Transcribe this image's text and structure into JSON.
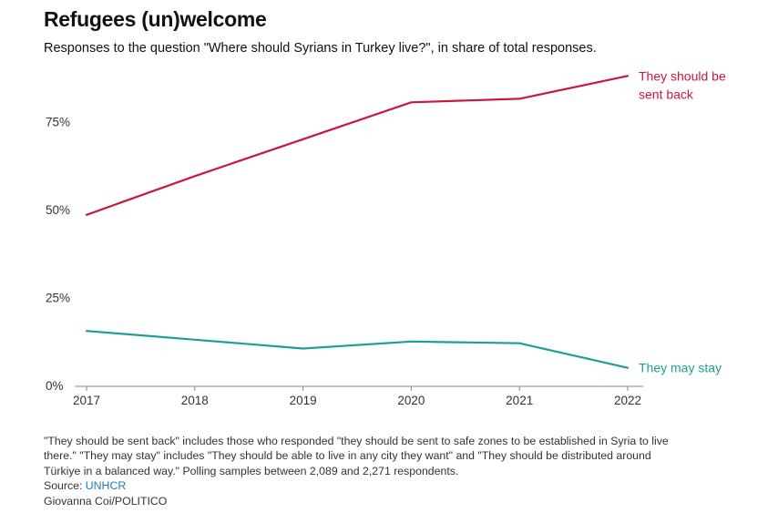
{
  "header": {
    "title": "Refugees (un)welcome",
    "subtitle": "Responses to the question \"Where should Syrians in Turkey live?\", in share of total responses."
  },
  "chart_data": {
    "type": "line",
    "title": "Refugees (un)welcome",
    "subtitle": "Responses to the question \"Where should Syrians in Turkey live?\", in share of total responses.",
    "x": [
      "2017",
      "2018",
      "2019",
      "2020",
      "2021",
      "2022"
    ],
    "y_ticks": [
      {
        "value": 0,
        "label": "0%"
      },
      {
        "value": 25,
        "label": "25%"
      },
      {
        "value": 50,
        "label": "50%"
      },
      {
        "value": 75,
        "label": "75%"
      }
    ],
    "ylim": [
      0,
      90
    ],
    "xlabel": "",
    "ylabel": "",
    "grid": false,
    "series": [
      {
        "name": "They should be sent back",
        "label_lines": [
          "They should be",
          "sent back"
        ],
        "color": "#c8193c",
        "values": [
          48.5,
          59.5,
          70,
          80.5,
          81.5,
          88
        ]
      },
      {
        "name": "They may stay",
        "label_lines": [
          "They may stay"
        ],
        "color": "#1f9e95",
        "values": [
          15.5,
          13,
          10.5,
          12.5,
          12,
          5
        ]
      }
    ]
  },
  "notes": {
    "line1": "\"They should be sent back\" includes those who responded \"they should be sent to safe zones to be established in Syria to live",
    "line2": "there.\" \"They may stay\" includes \"They should be able to live in any city they want\" and \"They should be distributed around",
    "line3": "Türkiye in a balanced way.\" Polling samples between 2,089 and 2,271 respondents.",
    "source_label": "Source: ",
    "source_link": "UNHCR",
    "credit": "Giovanna Coi/POLITICO"
  }
}
